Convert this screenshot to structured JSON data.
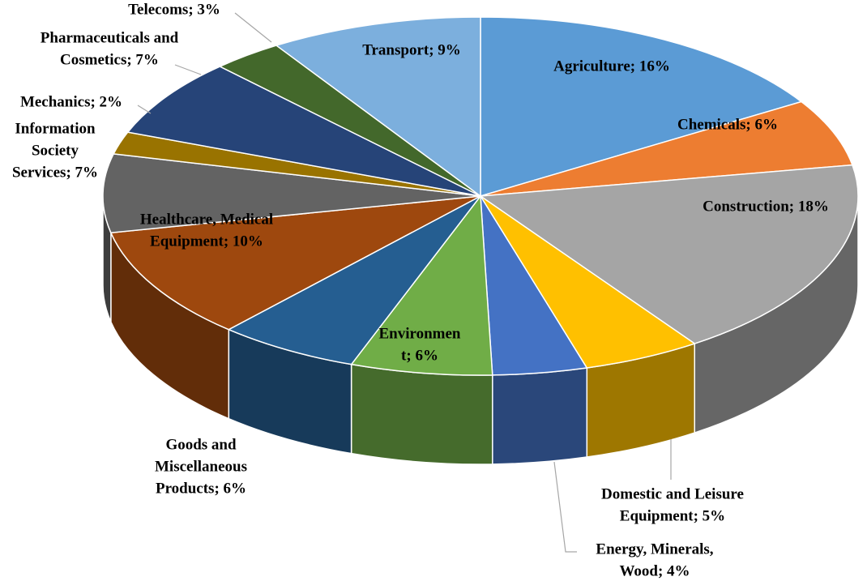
{
  "chart_data": {
    "type": "pie3d",
    "value_labels": [
      [
        "Agriculture; 16%"
      ],
      [
        "Chemicals; 6%"
      ],
      [
        "Construction; 18%"
      ],
      [
        "Domestic and Leisure",
        "Equipment; 5%"
      ],
      [
        "Energy, Minerals,",
        "Wood; 4%"
      ],
      [
        "Environmen",
        "t; 6%"
      ],
      [
        "Goods and",
        "Miscellaneous",
        "Products; 6%"
      ],
      [
        "Healthcare, Medical",
        "Equipment; 10%"
      ],
      [
        "Information",
        "Society",
        "Services; 7%"
      ],
      [
        "Mechanics; 2%"
      ],
      [
        "Pharmaceuticals and",
        "Cosmetics; 7%"
      ],
      [
        "Telecoms; 3%"
      ],
      [
        "Transport; 9%"
      ]
    ],
    "values": [
      16,
      6,
      18,
      5,
      4,
      6,
      6,
      10,
      7,
      2,
      7,
      3,
      9
    ],
    "colors": [
      "#5b9bd5",
      "#ed7d31",
      "#a5a5a5",
      "#ffc000",
      "#4472c4",
      "#70ad47",
      "#255e91",
      "#9e480e",
      "#636363",
      "#997300",
      "#264478",
      "#43682b",
      "#7cafdd"
    ]
  }
}
